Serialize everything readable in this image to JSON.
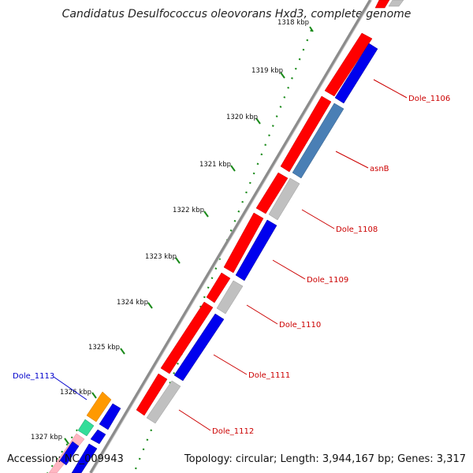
{
  "title": "Candidatus Desulfococcus oleovorans Hxd3, complete genome",
  "footer": {
    "accession": "Accession: NC_009943",
    "summary": "Topology: circular; Length: 3,944,167 bp; Genes: 3,317"
  },
  "ticks": [
    {
      "label": "1318 kbp",
      "kbp": 1318
    },
    {
      "label": "1319 kbp",
      "kbp": 1319
    },
    {
      "label": "1320 kbp",
      "kbp": 1320
    },
    {
      "label": "1321 kbp",
      "kbp": 1321
    },
    {
      "label": "1322 kbp",
      "kbp": 1322
    },
    {
      "label": "1323 kbp",
      "kbp": 1323
    },
    {
      "label": "1324 kbp",
      "kbp": 1324
    },
    {
      "label": "1325 kbp",
      "kbp": 1325
    },
    {
      "label": "1326 kbp",
      "kbp": 1326
    },
    {
      "label": "1327 kbp",
      "kbp": 1327
    }
  ],
  "gene_labels": [
    {
      "name": "Dole_1106"
    },
    {
      "name": "asnB"
    },
    {
      "name": "Dole_1108"
    },
    {
      "name": "Dole_1109"
    },
    {
      "name": "Dole_1110"
    },
    {
      "name": "Dole_1111"
    },
    {
      "name": "Dole_1112"
    },
    {
      "name": "Dole_1113"
    }
  ],
  "colors": {
    "backbone": "#8c8c8c",
    "forward_cds": "#ff0000",
    "gene_blue": "#0000ee",
    "gene_steel": "#4a7fb5",
    "gene_gray": "#c0c0c0",
    "gene_orange": "#ff9900",
    "gene_green": "#33dd99",
    "label_red": "#cc0000",
    "label_blue": "#0000cc",
    "dots": "#1a8a1a"
  }
}
